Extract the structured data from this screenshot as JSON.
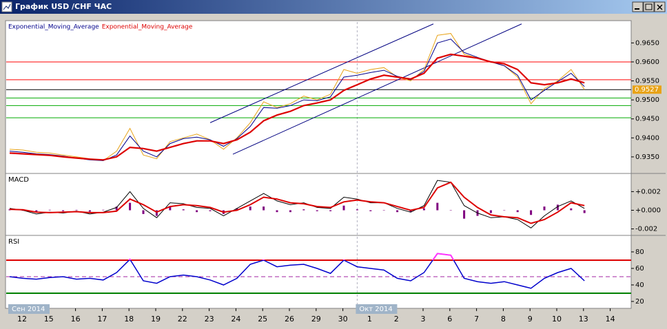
{
  "window": {
    "title": "График USD /CHF ЧАС"
  },
  "x_axis": {
    "categories": [
      "12",
      null,
      "15",
      null,
      "16",
      null,
      "17",
      null,
      "18",
      null,
      "19",
      null,
      "22",
      null,
      "23",
      null,
      "24",
      null,
      "25",
      null,
      "26",
      null,
      "29",
      null,
      "30",
      null,
      "1",
      null,
      "2",
      null,
      "3",
      null,
      "6",
      null,
      "7",
      null,
      "8",
      null,
      "9",
      null,
      "10",
      null,
      "13",
      null,
      "14",
      null
    ],
    "period_labels": [
      {
        "label": "Сен 2014",
        "x": 0
      },
      {
        "label": "Окт 2014",
        "x": 26
      }
    ]
  },
  "chart_data": [
    {
      "type": "line",
      "legend": "top-left",
      "series": [
        {
          "color": "#e8a317",
          "values": [
            0.937,
            0.9368,
            0.9362,
            0.936,
            0.9355,
            0.935,
            0.9345,
            0.934,
            0.9365,
            0.9425,
            0.9355,
            0.9345,
            0.939,
            0.94,
            0.941,
            0.9395,
            0.937,
            0.94,
            0.944,
            0.9495,
            0.948,
            0.949,
            0.951,
            0.95,
            0.9515,
            0.958,
            0.957,
            0.958,
            0.9585,
            0.956,
            0.955,
            0.958,
            0.967,
            0.9675,
            0.962,
            0.961,
            0.96,
            0.959,
            0.956,
            0.949,
            0.953,
            0.955,
            0.958,
            0.9527,
            null,
            null
          ]
        },
        {
          "name": "Exponential_Moving_Average",
          "color": "#00008b",
          "values": [
            0.9365,
            0.9362,
            0.9358,
            0.9356,
            0.9352,
            0.9347,
            0.9342,
            0.934,
            0.9355,
            0.9405,
            0.9365,
            0.935,
            0.9385,
            0.9398,
            0.9402,
            0.9395,
            0.9378,
            0.9398,
            0.943,
            0.948,
            0.9478,
            0.9485,
            0.95,
            0.9498,
            0.9508,
            0.956,
            0.9565,
            0.9572,
            0.9578,
            0.9562,
            0.9553,
            0.9575,
            0.965,
            0.966,
            0.9625,
            0.9612,
            0.96,
            0.959,
            0.9565,
            0.95,
            0.9525,
            0.9548,
            0.957,
            0.9535,
            null,
            null
          ]
        },
        {
          "name": "Exponential_Moving_Average",
          "color": "#dd0000",
          "values": [
            0.936,
            0.9358,
            0.9356,
            0.9354,
            0.935,
            0.9347,
            0.9344,
            0.9342,
            0.935,
            0.9375,
            0.9372,
            0.9365,
            0.9375,
            0.9385,
            0.9392,
            0.9392,
            0.9385,
            0.9395,
            0.9415,
            0.9445,
            0.946,
            0.947,
            0.9485,
            0.9492,
            0.95,
            0.9525,
            0.954,
            0.9555,
            0.9565,
            0.956,
            0.9555,
            0.957,
            0.961,
            0.962,
            0.9615,
            0.961,
            0.96,
            0.9595,
            0.958,
            0.9545,
            0.954,
            0.9545,
            0.9555,
            0.9545,
            null,
            null
          ]
        }
      ],
      "ylim": [
        0.931,
        0.9705
      ],
      "yticks": [
        {
          "value": 0.935,
          "label": "0.9350"
        },
        {
          "value": 0.94,
          "label": "0.9400"
        },
        {
          "value": 0.945,
          "label": "0.9450"
        },
        {
          "value": 0.95,
          "label": "0.9500"
        },
        {
          "value": 0.955,
          "label": "0.9550"
        },
        {
          "value": 0.96,
          "label": "0.9600"
        },
        {
          "value": 0.965,
          "label": "0.9650"
        }
      ],
      "hlines": [
        {
          "value": 0.96,
          "color": "#ff0000"
        },
        {
          "value": 0.9553,
          "color": "#ff0000"
        },
        {
          "value": 0.9505,
          "color": "#00aa00"
        },
        {
          "value": 0.9485,
          "color": "#00aa00"
        },
        {
          "value": 0.9453,
          "color": "#00aa00"
        }
      ],
      "channel": [
        {
          "x": [
            15,
            31.7
          ],
          "y": [
            0.944,
            0.97
          ],
          "color": "#000080"
        },
        {
          "x": [
            16.7,
            38.3
          ],
          "y": [
            0.9357,
            0.97
          ],
          "color": "#000080"
        }
      ],
      "price_tag": {
        "value": 0.9527,
        "label": "0.9527",
        "color": "#e8a317"
      }
    },
    {
      "type": "macd",
      "title": "MACD",
      "series": [
        {
          "kind": "bar",
          "color": "#800080",
          "values": [
            0.0001,
            -5e-05,
            -0.0002,
            5e-05,
            -0.0001,
            5e-05,
            -0.00015,
            5e-05,
            0.0004,
            0.0008,
            -0.0004,
            -0.0006,
            0.0004,
            0.0001,
            -0.0002,
            -0.0001,
            -0.0004,
            0.0002,
            0.0004,
            0.0004,
            -0.0002,
            -0.0002,
            0.0001,
            -0.0001,
            -0.0001,
            0.0005,
            0.0001,
            -0.0001,
            0,
            -0.0002,
            -0.0002,
            0.0002,
            0.0008,
            0,
            -0.0009,
            -0.0006,
            -0.0003,
            0,
            -0.0002,
            -0.0005,
            0.0004,
            0.0006,
            0.0002,
            -0.0003,
            null,
            null
          ]
        },
        {
          "kind": "line",
          "color": "#000000",
          "values": [
            0.0002,
            0,
            -0.0004,
            -0.0002,
            -0.0003,
            -0.0001,
            -0.0004,
            -0.0002,
            0.0003,
            0.002,
            0.0002,
            -0.0008,
            0.0008,
            0.0007,
            0.0003,
            0.0002,
            -0.0006,
            0.0002,
            0.001,
            0.0018,
            0.001,
            0.0006,
            0.0008,
            0.0003,
            0.0002,
            0.0014,
            0.0012,
            0.0008,
            0.0008,
            0.0002,
            -0.0002,
            0.0005,
            0.0032,
            0.003,
            0.0005,
            -0.0003,
            -0.0008,
            -0.0007,
            -0.001,
            -0.0019,
            -0.0006,
            0.0004,
            0.001,
            0.0002,
            null,
            null
          ]
        },
        {
          "kind": "line",
          "color": "#dd0000",
          "values": [
            0.0001,
            5e-05,
            -0.0002,
            -0.00025,
            -0.0002,
            -0.00015,
            -0.00025,
            -0.00025,
            -0.0001,
            0.0012,
            0.0006,
            -0.0002,
            0.0004,
            0.0006,
            0.0005,
            0.0003,
            -0.0002,
            0,
            0.0006,
            0.0014,
            0.0012,
            0.0008,
            0.0007,
            0.0004,
            0.0003,
            0.0009,
            0.0011,
            0.0009,
            0.0008,
            0.0004,
            0,
            0.0003,
            0.0024,
            0.003,
            0.0014,
            0.0003,
            -0.0005,
            -0.0007,
            -0.0008,
            -0.0014,
            -0.001,
            -0.0002,
            0.0008,
            0.0005,
            null,
            null
          ]
        }
      ],
      "ylim": [
        -0.0024,
        0.0038
      ],
      "yticks": [
        {
          "value": -0.002,
          "label": "-0.002"
        },
        {
          "value": 0,
          "label": "+0.000"
        },
        {
          "value": 0.002,
          "label": "+0.002"
        }
      ]
    },
    {
      "type": "rsi",
      "title": "RSI",
      "series": [
        {
          "color": "#0000cc",
          "values": [
            50,
            48,
            47,
            49,
            50,
            47,
            48,
            46,
            55,
            71,
            45,
            42,
            50,
            52,
            50,
            46,
            40,
            48,
            65,
            70,
            62,
            64,
            65,
            60,
            54,
            70,
            62,
            60,
            58,
            48,
            45,
            55,
            78,
            76,
            48,
            44,
            42,
            44,
            40,
            36,
            48,
            55,
            60,
            45,
            null,
            null
          ]
        }
      ],
      "overbought_color": "#ff33ff",
      "ylim": [
        13.3,
        98.3
      ],
      "yticks": [
        20,
        40,
        60,
        80
      ],
      "levels": [
        {
          "value": 70,
          "color": "#dd0000"
        },
        {
          "value": 50,
          "color": "#a020a0",
          "dash": true
        },
        {
          "value": 30,
          "color": "#008000"
        }
      ]
    }
  ]
}
